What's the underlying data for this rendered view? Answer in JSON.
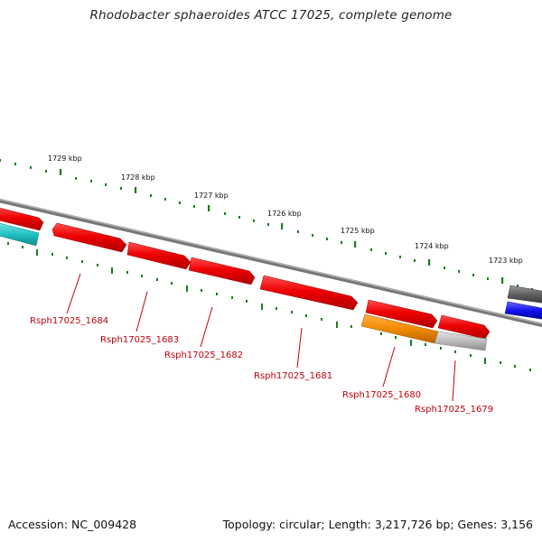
{
  "title": "Rhodobacter sphaeroides ATCC 17025, complete genome",
  "footer": {
    "accession": "Accession: NC_009428",
    "summary": "Topology: circular; Length: 3,217,726 bp; Genes: 3,156"
  },
  "colors": {
    "forward_gene": "#ee0000",
    "reverse_teal": "#22c2c2",
    "orange_gene": "#f28a00",
    "grey_gene": "#bdbdbd",
    "dark_gene": "#606060",
    "blue_gene": "#1010ee",
    "tick": "#1e7a1e",
    "label": "#c0000b"
  },
  "map": {
    "kbp_ticks": [
      "1729 kbp",
      "1728 kbp",
      "1727 kbp",
      "1726 kbp",
      "1725 kbp",
      "1724 kbp",
      "1723 kbp"
    ],
    "genes": [
      {
        "id": "left-top-partial",
        "color": "forward_gene",
        "label": ""
      },
      {
        "id": "left-bottom-partial",
        "color": "reverse_teal",
        "label": ""
      },
      {
        "id": "rsph17025-1684",
        "color": "forward_gene",
        "label": "Rsph17025_1684"
      },
      {
        "id": "rsph17025-1683",
        "color": "forward_gene",
        "label": "Rsph17025_1683"
      },
      {
        "id": "rsph17025-1682",
        "color": "forward_gene",
        "label": "Rsph17025_1682"
      },
      {
        "id": "rsph17025-1681",
        "color": "forward_gene",
        "label": "Rsph17025_1681"
      },
      {
        "id": "red-1680-top",
        "color": "forward_gene",
        "label": ""
      },
      {
        "id": "rsph17025-1680",
        "color": "orange_gene",
        "label": "Rsph17025_1680"
      },
      {
        "id": "red-1679-top",
        "color": "forward_gene",
        "label": ""
      },
      {
        "id": "rsph17025-1679",
        "color": "grey_gene",
        "label": "Rsph17025_1679"
      },
      {
        "id": "right-dark-partial",
        "color": "dark_gene",
        "label": ""
      },
      {
        "id": "right-blue-partial",
        "color": "blue_gene",
        "label": ""
      }
    ]
  }
}
